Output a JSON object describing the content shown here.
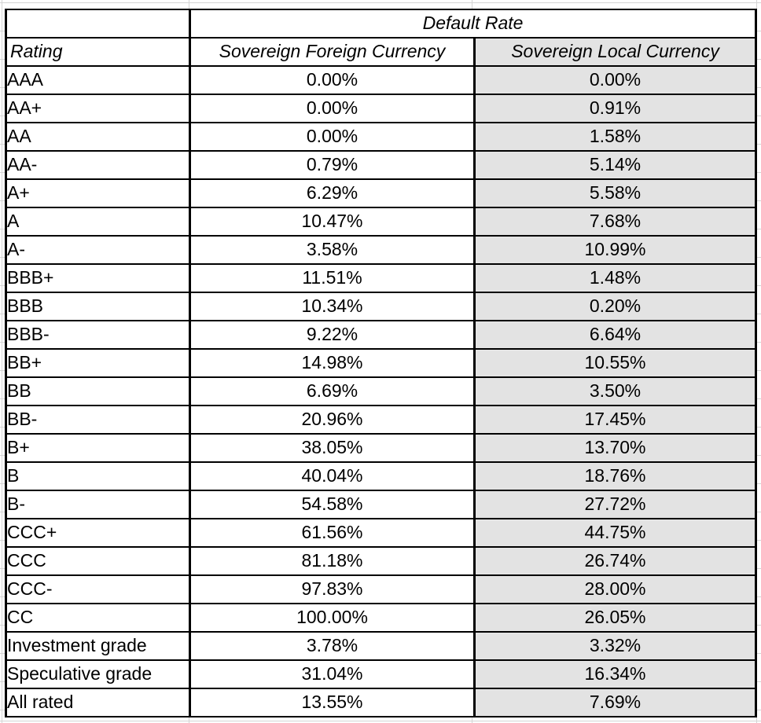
{
  "table": {
    "title": "Default Rate",
    "columns": [
      "Rating",
      "Sovereign Foreign Currency",
      "Sovereign Local Currency"
    ],
    "rows": [
      {
        "rating": "AAA",
        "foreign": "0.00%",
        "local": "0.00%"
      },
      {
        "rating": "AA+",
        "foreign": "0.00%",
        "local": "0.91%"
      },
      {
        "rating": "AA",
        "foreign": "0.00%",
        "local": "1.58%"
      },
      {
        "rating": "AA-",
        "foreign": "0.79%",
        "local": "5.14%"
      },
      {
        "rating": "A+",
        "foreign": "6.29%",
        "local": "5.58%"
      },
      {
        "rating": "A",
        "foreign": "10.47%",
        "local": "7.68%"
      },
      {
        "rating": "A-",
        "foreign": "3.58%",
        "local": "10.99%"
      },
      {
        "rating": "BBB+",
        "foreign": "11.51%",
        "local": "1.48%"
      },
      {
        "rating": "BBB",
        "foreign": "10.34%",
        "local": "0.20%"
      },
      {
        "rating": "BBB-",
        "foreign": "9.22%",
        "local": "6.64%"
      },
      {
        "rating": "BB+",
        "foreign": "14.98%",
        "local": "10.55%"
      },
      {
        "rating": "BB",
        "foreign": "6.69%",
        "local": "3.50%"
      },
      {
        "rating": "BB-",
        "foreign": "20.96%",
        "local": "17.45%"
      },
      {
        "rating": "B+",
        "foreign": "38.05%",
        "local": "13.70%"
      },
      {
        "rating": "B",
        "foreign": "40.04%",
        "local": "18.76%"
      },
      {
        "rating": "B-",
        "foreign": "54.58%",
        "local": "27.72%"
      },
      {
        "rating": "CCC+",
        "foreign": "61.56%",
        "local": "44.75%"
      },
      {
        "rating": "CCC",
        "foreign": "81.18%",
        "local": "26.74%"
      },
      {
        "rating": "CCC-",
        "foreign": "97.83%",
        "local": "28.00%"
      },
      {
        "rating": "CC",
        "foreign": "100.00%",
        "local": "26.05%"
      },
      {
        "rating": "Investment grade",
        "foreign": "3.78%",
        "local": "3.32%"
      },
      {
        "rating": "Speculative grade",
        "foreign": "31.04%",
        "local": "16.34%"
      },
      {
        "rating": "All rated",
        "foreign": "13.55%",
        "local": "7.69%"
      }
    ]
  },
  "colors": {
    "local_column_fill": "#e3e3e3",
    "table_border": "#000000",
    "gridline": "#d4d4d4",
    "background": "#ffffff",
    "text": "#000000"
  }
}
